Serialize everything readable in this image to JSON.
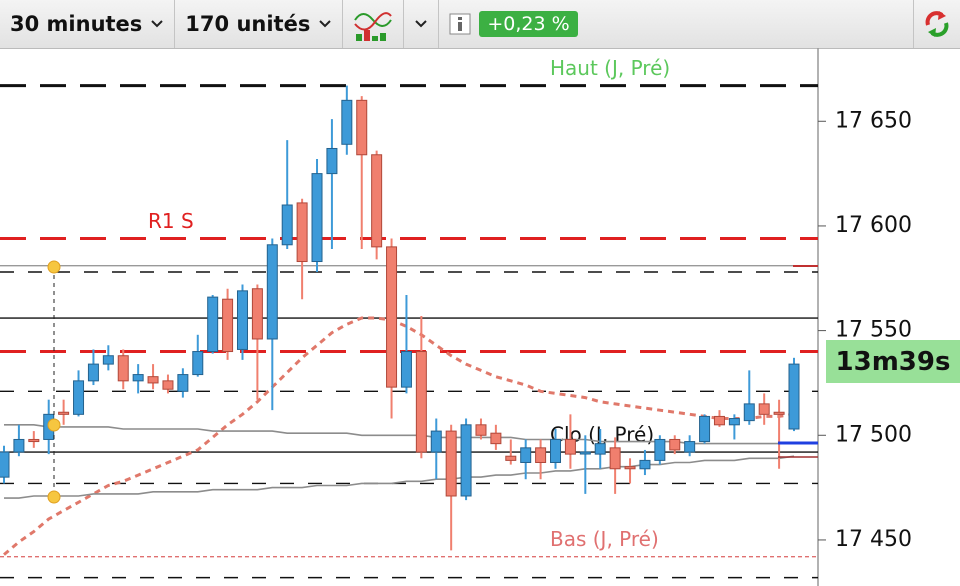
{
  "toolbar": {
    "timeframe": "30 minutes",
    "units": "170 unités",
    "change": "+0,23 %"
  },
  "chart_data": {
    "type": "candlestick",
    "ylim": [
      17428,
      17685
    ],
    "yticks": [
      {
        "value": 17650,
        "label": "17 650"
      },
      {
        "value": 17600,
        "label": "17 600"
      },
      {
        "value": 17550,
        "label": "17 550"
      },
      {
        "value": 17500,
        "label": "17 500"
      },
      {
        "value": 17450,
        "label": "17 450"
      }
    ],
    "countdown": "13m39s",
    "up_color": "#3d9ad8",
    "down_color": "#f07f6e",
    "open": [
      17480,
      17492,
      17498,
      17498,
      17511,
      17510,
      17526,
      17534,
      17538,
      17526,
      17528,
      17526,
      17521,
      17529,
      17540,
      17565,
      17541,
      17570,
      17546,
      17591,
      17611,
      17583,
      17625,
      17639,
      17660,
      17634,
      17590,
      17523,
      17540,
      17492,
      17502,
      17471,
      17505,
      17501,
      17490,
      17487,
      17494,
      17487,
      17498,
      17492,
      17491,
      17494,
      17485,
      17484,
      17488,
      17498,
      17492,
      17497,
      17509,
      17505,
      17507,
      17515,
      17511,
      17503
    ],
    "high": [
      17495,
      17505,
      17502,
      17517,
      17517,
      17531,
      17541,
      17543,
      17541,
      17534,
      17534,
      17529,
      17532,
      17548,
      17567,
      17570,
      17572,
      17572,
      17594,
      17641,
      17613,
      17632,
      17651,
      17667,
      17662,
      17636,
      17594,
      17567,
      17557,
      17508,
      17505,
      17508,
      17508,
      17505,
      17498,
      17498,
      17498,
      17503,
      17510,
      17500,
      17503,
      17499,
      17489,
      17493,
      17500,
      17500,
      17500,
      17510,
      17512,
      17510,
      17531,
      17520,
      17517,
      17537
    ],
    "low": [
      17477,
      17490,
      17494,
      17491,
      17505,
      17509,
      17524,
      17531,
      17522,
      17520,
      17522,
      17520,
      17518,
      17528,
      17539,
      17536,
      17536,
      17517,
      17512,
      17589,
      17565,
      17578,
      17589,
      17634,
      17589,
      17584,
      17508,
      17520,
      17489,
      17479,
      17445,
      17469,
      17498,
      17493,
      17486,
      17479,
      17479,
      17484,
      17484,
      17472,
      17484,
      17472,
      17477,
      17481,
      17486,
      17491,
      17490,
      17496,
      17504,
      17498,
      17505,
      17505,
      17484,
      17502
    ],
    "close": [
      17492,
      17498,
      17497,
      17510,
      17510,
      17526,
      17534,
      17538,
      17526,
      17529,
      17525,
      17522,
      17529,
      17540,
      17566,
      17540,
      17569,
      17546,
      17591,
      17610,
      17583,
      17625,
      17637,
      17660,
      17634,
      17590,
      17523,
      17540,
      17492,
      17502,
      17471,
      17505,
      17500,
      17496,
      17488,
      17494,
      17487,
      17498,
      17491,
      17492,
      17496,
      17484,
      17484,
      17488,
      17498,
      17493,
      17497,
      17509,
      17505,
      17508,
      17515,
      17510,
      17510,
      17534
    ],
    "series": [
      {
        "color": "#e0786a",
        "dash": "dotted",
        "values": [
          17443,
          17449,
          17454,
          17460,
          17464,
          17468,
          17472,
          17476,
          17478,
          17481,
          17484,
          17487,
          17490,
          17493,
          17499,
          17505,
          17510,
          17516,
          17523,
          17530,
          17537,
          17543,
          17549,
          17553,
          17556,
          17556,
          17555,
          17552,
          17548,
          17543,
          17538,
          17534,
          17531,
          17528,
          17526,
          17524,
          17521,
          17520,
          17519,
          17518,
          17516,
          17515,
          17514,
          17513,
          17512,
          17511,
          17510,
          17509,
          17508,
          17508,
          17508,
          17509,
          17509,
          17510
        ]
      },
      {
        "color": "#8c8c8c",
        "dash": "solid",
        "values": [
          17505,
          17505,
          17505,
          17504,
          17504,
          17504,
          17504,
          17504,
          17503,
          17503,
          17503,
          17503,
          17503,
          17503,
          17502,
          17502,
          17502,
          17502,
          17502,
          17501,
          17501,
          17501,
          17501,
          17501,
          17500,
          17500,
          17500,
          17500,
          17500,
          17499,
          17499,
          17499,
          17499,
          17499,
          17499,
          17498,
          17498,
          17498,
          17498,
          17498,
          17497,
          17497,
          17497,
          17497,
          17497,
          17497,
          17496,
          17496,
          17496,
          17496,
          17496,
          17496,
          17496,
          17496
        ]
      },
      {
        "color": "#8c8c8c",
        "dash": "solid",
        "values": [
          17470,
          17470,
          17471,
          17471,
          17471,
          17471,
          17472,
          17472,
          17472,
          17472,
          17473,
          17473,
          17473,
          17473,
          17474,
          17474,
          17474,
          17474,
          17475,
          17475,
          17475,
          17476,
          17476,
          17476,
          17477,
          17477,
          17477,
          17478,
          17478,
          17479,
          17479,
          17480,
          17480,
          17481,
          17481,
          17482,
          17482,
          17483,
          17483,
          17484,
          17484,
          17485,
          17485,
          17486,
          17486,
          17487,
          17487,
          17488,
          17488,
          17488,
          17489,
          17489,
          17489,
          17490
        ]
      }
    ],
    "levels": [
      {
        "label": "Haut (J, Pré)",
        "value": 17667,
        "color": "#111111",
        "label_color": "#5cc85c",
        "dash": "dashed"
      },
      {
        "label": "R1 S",
        "value": 17594,
        "color": "#e02020",
        "label_color": "#e02020",
        "dash": "dashed"
      },
      {
        "value": 17540,
        "color": "#e02020",
        "dash": "dashed"
      },
      {
        "label": "Clo (J, Pré)",
        "value": 17492,
        "color": "#111111",
        "label_color": "#111111",
        "dash": "solid"
      },
      {
        "label": "Bas (J, Pré)",
        "value": 17442,
        "color": "#e07070",
        "label_color": "#e07070",
        "dash": "dotted"
      },
      {
        "value": 17581,
        "color": "#999999",
        "dash": "solid"
      },
      {
        "value": 17556,
        "color": "#111111",
        "dash": "solid"
      },
      {
        "value": 17578,
        "color": "#111111",
        "dash": "dashed"
      },
      {
        "value": 17521,
        "color": "#111111",
        "dash": "dashed"
      },
      {
        "value": 17477,
        "color": "#111111",
        "dash": "dashed"
      },
      {
        "value": 17432,
        "color": "#111111",
        "dash": "dashed"
      }
    ]
  }
}
